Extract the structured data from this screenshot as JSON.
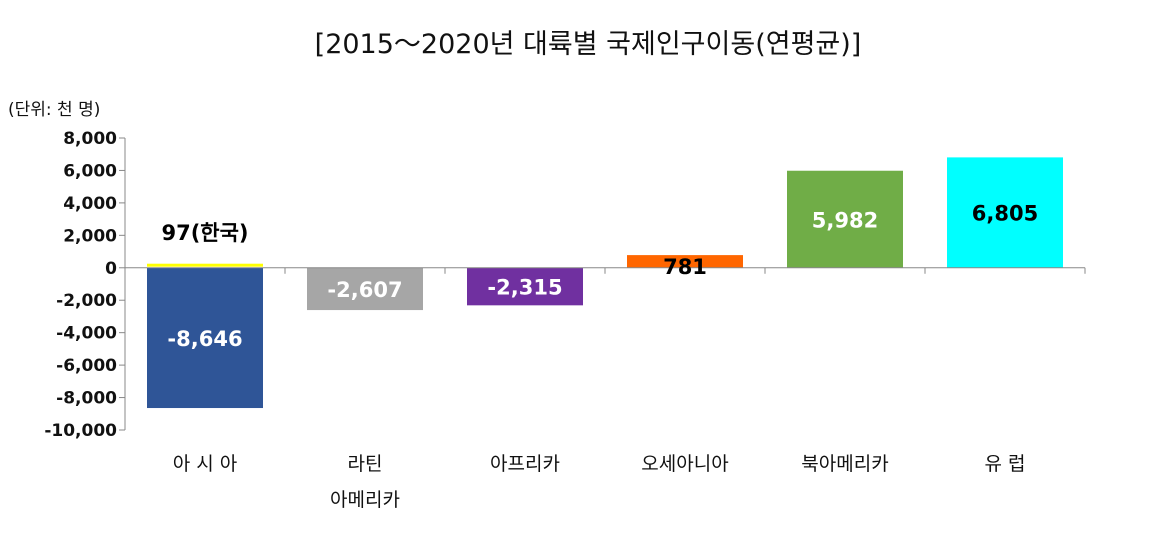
{
  "chart_data": {
    "type": "bar",
    "title": "[2015～2020년 대륙별 국제인구이동(연평균)]",
    "unit_label": "(단위: 천 명)",
    "ylim": [
      -10000,
      8000
    ],
    "yticks": [
      8000,
      6000,
      4000,
      2000,
      0,
      -2000,
      -4000,
      -6000,
      -8000,
      -10000
    ],
    "ytick_labels": [
      "8,000",
      "6,000",
      "4,000",
      "2,000",
      "0",
      "-2,000",
      "-4,000",
      "-6,000",
      "-8,000",
      "-10,000"
    ],
    "categories": [
      [
        "아 시 아"
      ],
      [
        "라틴",
        "아메리카"
      ],
      [
        "아프리카"
      ],
      [
        "오세아니아"
      ],
      [
        "북아메리카"
      ],
      [
        "유 럽"
      ]
    ],
    "values": [
      -8646,
      -2607,
      -2315,
      781,
      5982,
      6805
    ],
    "data_labels": [
      "-8,646",
      "-2,607",
      "-2,315",
      "781",
      "5,982",
      "6,805"
    ],
    "colors": [
      "#2F5597",
      "#A6A6A6",
      "#7030A0",
      "#FF6600",
      "#70AD47",
      "#00FFFF"
    ],
    "label_colors": [
      "#ffffff",
      "#ffffff",
      "#ffffff",
      "#000000",
      "#ffffff",
      "#000000"
    ],
    "annotation": {
      "category_index": 0,
      "value": 97,
      "text": "97(한국)",
      "color": "#FFFF00"
    },
    "grid": false,
    "legend": "none"
  }
}
